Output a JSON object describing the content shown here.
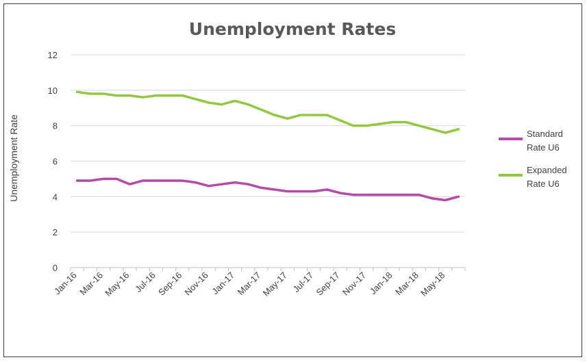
{
  "chart_data": {
    "type": "line",
    "title": "Unemployment Rates",
    "xlabel": "",
    "ylabel": "Unemployment Rate",
    "ylim": [
      0,
      12
    ],
    "yticks": [
      0,
      2,
      4,
      6,
      8,
      10,
      12
    ],
    "grid": true,
    "legend_position": "right",
    "x": [
      "Jan-16",
      "Feb-16",
      "Mar-16",
      "Apr-16",
      "May-16",
      "Jun-16",
      "Jul-16",
      "Aug-16",
      "Sep-16",
      "Oct-16",
      "Nov-16",
      "Dec-16",
      "Jan-17",
      "Feb-17",
      "Mar-17",
      "Apr-17",
      "May-17",
      "Jun-17",
      "Jul-17",
      "Aug-17",
      "Sep-17",
      "Oct-17",
      "Nov-17",
      "Dec-17",
      "Jan-18",
      "Feb-18",
      "Mar-18",
      "Apr-18",
      "May-18",
      "Jun-18"
    ],
    "x_tick_labels": [
      "Jan-16",
      "Mar-16",
      "May-16",
      "Jul-16",
      "Sep-16",
      "Nov-16",
      "Jan-17",
      "Mar-17",
      "May-17",
      "Jul-17",
      "Sep-17",
      "Nov-17",
      "Jan-18",
      "Mar-18",
      "May-18"
    ],
    "series": [
      {
        "name_lines": [
          "Standard",
          "Rate U6"
        ],
        "color": "#b54aa8",
        "values": [
          4.9,
          4.9,
          5.0,
          5.0,
          4.7,
          4.9,
          4.9,
          4.9,
          4.9,
          4.8,
          4.6,
          4.7,
          4.8,
          4.7,
          4.5,
          4.4,
          4.3,
          4.3,
          4.3,
          4.4,
          4.2,
          4.1,
          4.1,
          4.1,
          4.1,
          4.1,
          4.1,
          3.9,
          3.8,
          4.0
        ]
      },
      {
        "name_lines": [
          "Expanded",
          "Rate U6"
        ],
        "color": "#92c83e",
        "values": [
          9.9,
          9.8,
          9.8,
          9.7,
          9.7,
          9.6,
          9.7,
          9.7,
          9.7,
          9.5,
          9.3,
          9.2,
          9.4,
          9.2,
          8.9,
          8.6,
          8.4,
          8.6,
          8.6,
          8.6,
          8.3,
          8.0,
          8.0,
          8.1,
          8.2,
          8.2,
          8.0,
          7.8,
          7.6,
          7.8
        ]
      }
    ]
  }
}
